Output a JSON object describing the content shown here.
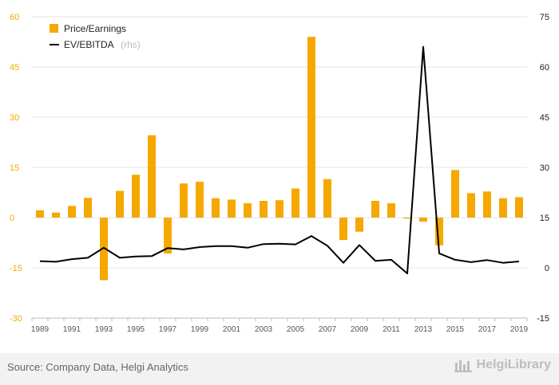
{
  "chart_data": {
    "type": "bar",
    "categories": [
      "1989",
      "1990",
      "1991",
      "1992",
      "1993",
      "1994",
      "1995",
      "1996",
      "1997",
      "1998",
      "1999",
      "2000",
      "2001",
      "2002",
      "2003",
      "2004",
      "2005",
      "2006",
      "2007",
      "2008",
      "2009",
      "2010",
      "2011",
      "2012",
      "2013",
      "2014",
      "2015",
      "2016",
      "2017",
      "2018",
      "2019"
    ],
    "x_tick_labels": [
      "1989",
      "1991",
      "1993",
      "1995",
      "1997",
      "1999",
      "2001",
      "2003",
      "2005",
      "2007",
      "2009",
      "2011",
      "2013",
      "2015",
      "2017",
      "2019"
    ],
    "series": [
      {
        "name": "Price/Earnings",
        "type": "bar",
        "axis": "left",
        "color": "#f5a800",
        "values": [
          2.2,
          1.5,
          3.5,
          5.9,
          -18.7,
          8.0,
          12.8,
          24.6,
          -10.7,
          10.2,
          10.7,
          5.8,
          5.4,
          4.3,
          5.0,
          5.2,
          8.7,
          54.0,
          11.5,
          -6.7,
          -4.2,
          5.0,
          4.3,
          -0.3,
          -1.2,
          -8.3,
          14.2,
          7.3,
          7.8,
          5.8,
          6.1
        ]
      },
      {
        "name": "EV/EBITDA",
        "name_note": "(rhs)",
        "type": "line",
        "axis": "right",
        "color": "#000000",
        "values": [
          2.0,
          1.8,
          2.6,
          3.0,
          6.0,
          3.0,
          3.4,
          3.5,
          5.9,
          5.5,
          6.2,
          6.5,
          6.5,
          6.0,
          7.1,
          7.2,
          7.0,
          9.5,
          6.6,
          1.5,
          6.8,
          2.1,
          2.4,
          -1.7,
          66.0,
          4.3,
          2.4,
          1.7,
          2.3,
          1.5,
          1.9
        ]
      }
    ],
    "ylim_left": [
      -30,
      60
    ],
    "yticks_left": [
      60,
      45,
      30,
      15,
      0,
      -15,
      -30
    ],
    "ylim_right": [
      -15,
      75
    ],
    "yticks_right": [
      75,
      60,
      45,
      30,
      15,
      0,
      -15
    ],
    "grid": true,
    "legend_position": "top-left"
  },
  "footer": {
    "source": "Source: Company Data, Helgi Analytics",
    "brand": "HelgiLibrary"
  }
}
